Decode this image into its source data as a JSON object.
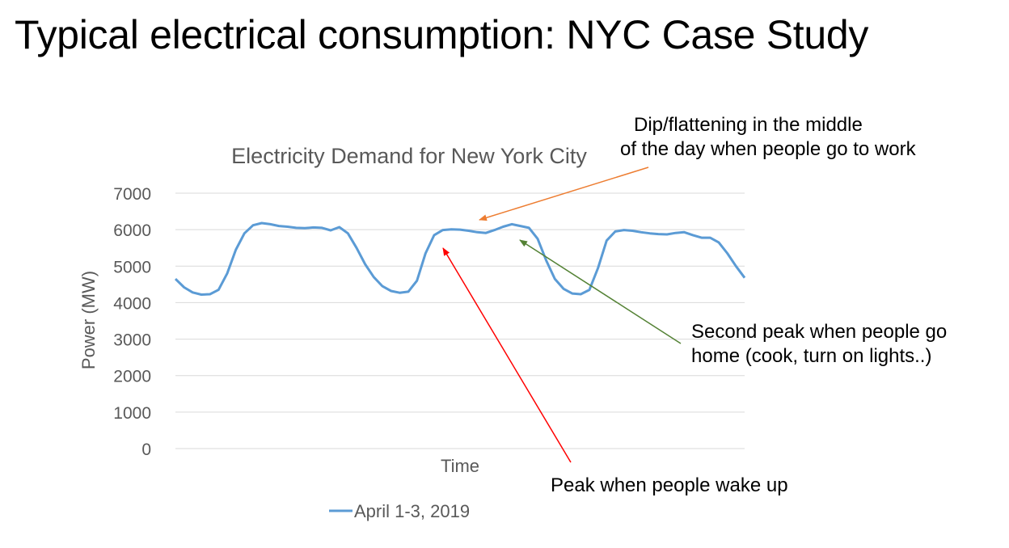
{
  "slide": {
    "title": "Typical electrical consumption: NYC Case Study"
  },
  "annotations": {
    "dip": {
      "line1": "Dip/flattening in the middle",
      "line2": "of the day when people go to work",
      "color": "#ED7D31"
    },
    "second_peak": {
      "line1": "Second peak when people go",
      "line2": "home (cook, turn on lights..)",
      "color": "#548235"
    },
    "morning_peak": {
      "line1": "Peak when people wake up",
      "color": "#FF0000"
    }
  },
  "chart_data": {
    "type": "line",
    "title": "Electricity Demand for New York City",
    "xlabel": "Time",
    "ylabel": "Power (MW)",
    "ylim": [
      0,
      7000
    ],
    "yticks": [
      0,
      1000,
      2000,
      3000,
      4000,
      5000,
      6000,
      7000
    ],
    "grid": true,
    "legend_position": "bottom",
    "x_unit": "hour from start of April 1, 2019",
    "series": [
      {
        "name": "April 1-3, 2019",
        "color": "#5B9BD5",
        "points": [
          [
            0,
            4650
          ],
          [
            1,
            4420
          ],
          [
            2,
            4280
          ],
          [
            3,
            4220
          ],
          [
            4,
            4230
          ],
          [
            5,
            4350
          ],
          [
            6,
            4800
          ],
          [
            7,
            5450
          ],
          [
            8,
            5900
          ],
          [
            9,
            6120
          ],
          [
            10,
            6180
          ],
          [
            11,
            6150
          ],
          [
            12,
            6100
          ],
          [
            13,
            6080
          ],
          [
            14,
            6050
          ],
          [
            15,
            6040
          ],
          [
            16,
            6060
          ],
          [
            17,
            6050
          ],
          [
            18,
            5980
          ],
          [
            19,
            6070
          ],
          [
            20,
            5900
          ],
          [
            21,
            5500
          ],
          [
            22,
            5050
          ],
          [
            23,
            4700
          ],
          [
            24,
            4450
          ],
          [
            25,
            4320
          ],
          [
            26,
            4270
          ],
          [
            27,
            4300
          ],
          [
            28,
            4600
          ],
          [
            29,
            5350
          ],
          [
            30,
            5850
          ],
          [
            31,
            5990
          ],
          [
            32,
            6010
          ],
          [
            33,
            6000
          ],
          [
            34,
            5970
          ],
          [
            35,
            5930
          ],
          [
            36,
            5910
          ],
          [
            37,
            5990
          ],
          [
            38,
            6080
          ],
          [
            39,
            6150
          ],
          [
            40,
            6100
          ],
          [
            41,
            6050
          ],
          [
            42,
            5750
          ],
          [
            43,
            5150
          ],
          [
            44,
            4650
          ],
          [
            45,
            4380
          ],
          [
            46,
            4250
          ],
          [
            47,
            4230
          ],
          [
            48,
            4350
          ],
          [
            49,
            4950
          ],
          [
            50,
            5700
          ],
          [
            51,
            5950
          ],
          [
            52,
            5990
          ],
          [
            53,
            5970
          ],
          [
            54,
            5930
          ],
          [
            55,
            5900
          ],
          [
            56,
            5880
          ],
          [
            57,
            5870
          ],
          [
            58,
            5910
          ],
          [
            59,
            5930
          ],
          [
            60,
            5850
          ],
          [
            61,
            5780
          ],
          [
            62,
            5780
          ],
          [
            63,
            5650
          ],
          [
            64,
            5350
          ],
          [
            65,
            5000
          ],
          [
            66,
            4680
          ]
        ]
      }
    ]
  }
}
